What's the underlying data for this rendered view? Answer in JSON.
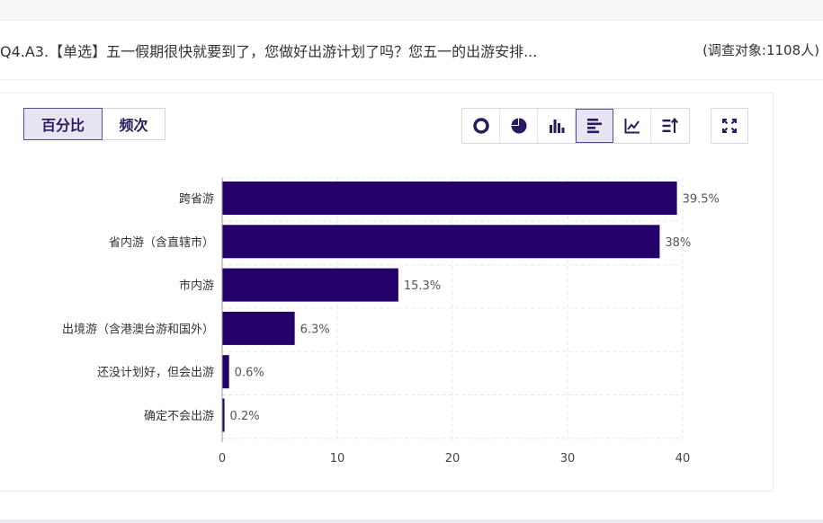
{
  "question": {
    "title": "Q4.A3.【单选】五一假期很快就要到了，您做好出游计划了吗？您五一的出游安排...",
    "respondents": "(调查对象:1108人)"
  },
  "view_tabs": [
    {
      "label": "百分比",
      "active": true
    },
    {
      "label": "频次",
      "active": false
    }
  ],
  "chart_tools": [
    {
      "icon": "donut-chart-icon",
      "active": false
    },
    {
      "icon": "pie-chart-icon",
      "active": false
    },
    {
      "icon": "bar-chart-icon",
      "active": false
    },
    {
      "icon": "horizontal-bar-chart-icon",
      "active": true
    },
    {
      "icon": "line-chart-icon",
      "active": false
    },
    {
      "icon": "sort-icon",
      "active": false
    }
  ],
  "expand_icon": "fullscreen-icon",
  "colors": {
    "bar": "#24006b",
    "accent": "#2b1a5e",
    "grid": "#e6e6f2"
  },
  "chart_data": {
    "type": "bar",
    "orientation": "horizontal",
    "categories": [
      "跨省游",
      "省内游（含直辖市）",
      "市内游",
      "出境游（含港澳台游和国外）",
      "还没计划好，但会出游",
      "确定不会出游"
    ],
    "values": [
      39.5,
      38,
      15.3,
      6.3,
      0.6,
      0.2
    ],
    "value_labels": [
      "39.5%",
      "38%",
      "15.3%",
      "6.3%",
      "0.6%",
      "0.2%"
    ],
    "xlim": [
      0,
      40
    ],
    "xticks": [
      "0",
      "10",
      "20",
      "30",
      "40"
    ],
    "grid": true
  }
}
